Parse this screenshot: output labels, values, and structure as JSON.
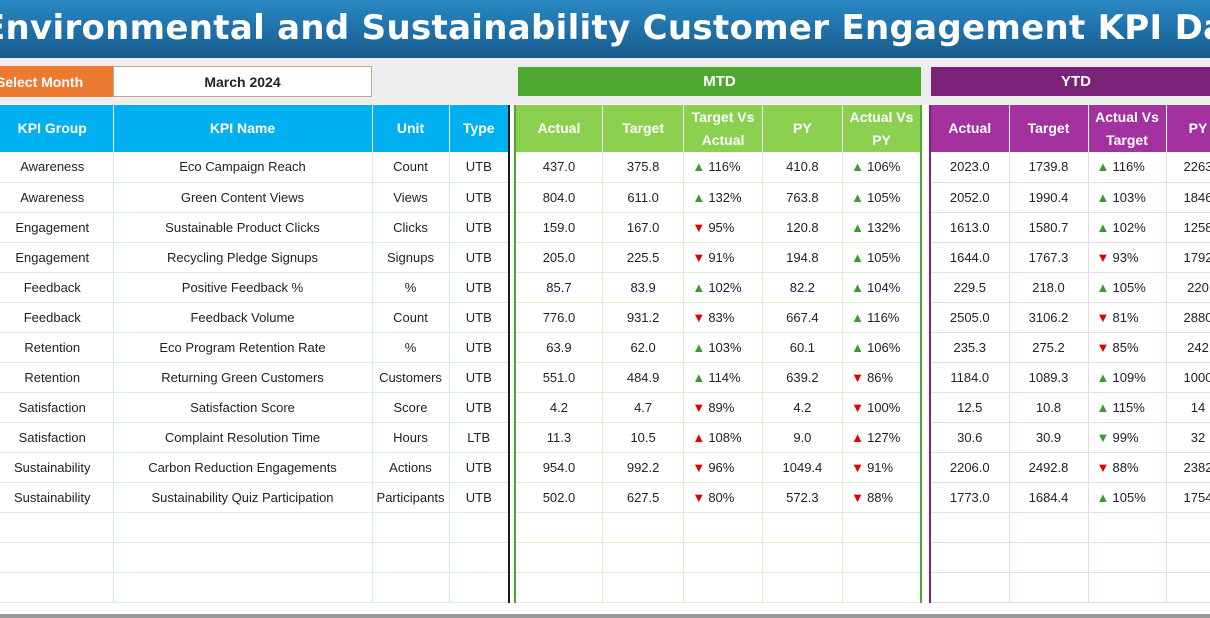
{
  "header": {
    "title": "Environmental and Sustainability Customer Engagement KPI Dashboard - Report"
  },
  "month_selector": {
    "label": "Select Month",
    "value": "March 2024"
  },
  "sections": {
    "mtd": "MTD",
    "ytd": "YTD"
  },
  "columns": {
    "info": [
      "KPI Group",
      "KPI Name",
      "Unit",
      "Type"
    ],
    "mtd": [
      "Actual",
      "Target",
      "Target Vs Actual",
      "PY",
      "Actual Vs PY"
    ],
    "ytd": [
      "Actual",
      "Target",
      "Actual Vs Target",
      "PY"
    ]
  },
  "colors": {
    "up": "#3c9a32",
    "down": "#e00000",
    "mtd": "#4ea72e",
    "ytd": "#7b2378",
    "info": "#00b0f0"
  },
  "rows": [
    {
      "group": "Awareness",
      "name": "Eco Campaign Reach",
      "unit": "Count",
      "type": "UTB",
      "mtd": {
        "actual": "437.0",
        "target": "375.8",
        "tva": "116%",
        "tva_dir": "up",
        "py": "410.8",
        "avpy": "106%",
        "avpy_dir": "up"
      },
      "ytd": {
        "actual": "2023.0",
        "target": "1739.8",
        "avt": "116%",
        "avt_dir": "up",
        "py": "2263"
      }
    },
    {
      "group": "Awareness",
      "name": "Green Content Views",
      "unit": "Views",
      "type": "UTB",
      "mtd": {
        "actual": "804.0",
        "target": "611.0",
        "tva": "132%",
        "tva_dir": "up",
        "py": "763.8",
        "avpy": "105%",
        "avpy_dir": "up"
      },
      "ytd": {
        "actual": "2052.0",
        "target": "1990.4",
        "avt": "103%",
        "avt_dir": "up",
        "py": "1846"
      }
    },
    {
      "group": "Engagement",
      "name": "Sustainable Product Clicks",
      "unit": "Clicks",
      "type": "UTB",
      "mtd": {
        "actual": "159.0",
        "target": "167.0",
        "tva": "95%",
        "tva_dir": "down",
        "py": "120.8",
        "avpy": "132%",
        "avpy_dir": "up"
      },
      "ytd": {
        "actual": "1613.0",
        "target": "1580.7",
        "avt": "102%",
        "avt_dir": "up",
        "py": "1258"
      }
    },
    {
      "group": "Engagement",
      "name": "Recycling Pledge Signups",
      "unit": "Signups",
      "type": "UTB",
      "mtd": {
        "actual": "205.0",
        "target": "225.5",
        "tva": "91%",
        "tva_dir": "down",
        "py": "194.8",
        "avpy": "105%",
        "avpy_dir": "up"
      },
      "ytd": {
        "actual": "1644.0",
        "target": "1767.3",
        "avt": "93%",
        "avt_dir": "down",
        "py": "1792"
      }
    },
    {
      "group": "Feedback",
      "name": "Positive Feedback %",
      "unit": "%",
      "type": "UTB",
      "mtd": {
        "actual": "85.7",
        "target": "83.9",
        "tva": "102%",
        "tva_dir": "up",
        "py": "82.2",
        "avpy": "104%",
        "avpy_dir": "up"
      },
      "ytd": {
        "actual": "229.5",
        "target": "218.0",
        "avt": "105%",
        "avt_dir": "up",
        "py": "220"
      }
    },
    {
      "group": "Feedback",
      "name": "Feedback Volume",
      "unit": "Count",
      "type": "UTB",
      "mtd": {
        "actual": "776.0",
        "target": "931.2",
        "tva": "83%",
        "tva_dir": "down",
        "py": "667.4",
        "avpy": "116%",
        "avpy_dir": "up"
      },
      "ytd": {
        "actual": "2505.0",
        "target": "3106.2",
        "avt": "81%",
        "avt_dir": "down",
        "py": "2880"
      }
    },
    {
      "group": "Retention",
      "name": "Eco Program Retention Rate",
      "unit": "%",
      "type": "UTB",
      "mtd": {
        "actual": "63.9",
        "target": "62.0",
        "tva": "103%",
        "tva_dir": "up",
        "py": "60.1",
        "avpy": "106%",
        "avpy_dir": "up"
      },
      "ytd": {
        "actual": "235.3",
        "target": "275.2",
        "avt": "85%",
        "avt_dir": "down",
        "py": "242"
      }
    },
    {
      "group": "Retention",
      "name": "Returning Green Customers",
      "unit": "Customers",
      "type": "UTB",
      "mtd": {
        "actual": "551.0",
        "target": "484.9",
        "tva": "114%",
        "tva_dir": "up",
        "py": "639.2",
        "avpy": "86%",
        "avpy_dir": "down"
      },
      "ytd": {
        "actual": "1184.0",
        "target": "1089.3",
        "avt": "109%",
        "avt_dir": "up",
        "py": "1000"
      }
    },
    {
      "group": "Satisfaction",
      "name": "Satisfaction Score",
      "unit": "Score",
      "type": "UTB",
      "mtd": {
        "actual": "4.2",
        "target": "4.7",
        "tva": "89%",
        "tva_dir": "down",
        "py": "4.2",
        "avpy": "100%",
        "avpy_dir": "down"
      },
      "ytd": {
        "actual": "12.5",
        "target": "10.8",
        "avt": "115%",
        "avt_dir": "up",
        "py": "14"
      }
    },
    {
      "group": "Satisfaction",
      "name": "Complaint Resolution Time",
      "unit": "Hours",
      "type": "LTB",
      "mtd": {
        "actual": "11.3",
        "target": "10.5",
        "tva": "108%",
        "tva_dir": "down-up",
        "py": "9.0",
        "avpy": "127%",
        "avpy_dir": "down-up"
      },
      "ytd": {
        "actual": "30.6",
        "target": "30.9",
        "avt": "99%",
        "avt_dir": "up-down",
        "py": "32"
      }
    },
    {
      "group": "Sustainability",
      "name": "Carbon Reduction Engagements",
      "unit": "Actions",
      "type": "UTB",
      "mtd": {
        "actual": "954.0",
        "target": "992.2",
        "tva": "96%",
        "tva_dir": "down",
        "py": "1049.4",
        "avpy": "91%",
        "avpy_dir": "down"
      },
      "ytd": {
        "actual": "2206.0",
        "target": "2492.8",
        "avt": "88%",
        "avt_dir": "down",
        "py": "2382"
      }
    },
    {
      "group": "Sustainability",
      "name": "Sustainability Quiz Participation",
      "unit": "Participants",
      "type": "UTB",
      "mtd": {
        "actual": "502.0",
        "target": "627.5",
        "tva": "80%",
        "tva_dir": "down",
        "py": "572.3",
        "avpy": "88%",
        "avpy_dir": "down"
      },
      "ytd": {
        "actual": "1773.0",
        "target": "1684.4",
        "avt": "105%",
        "avt_dir": "up",
        "py": "1754"
      }
    }
  ]
}
